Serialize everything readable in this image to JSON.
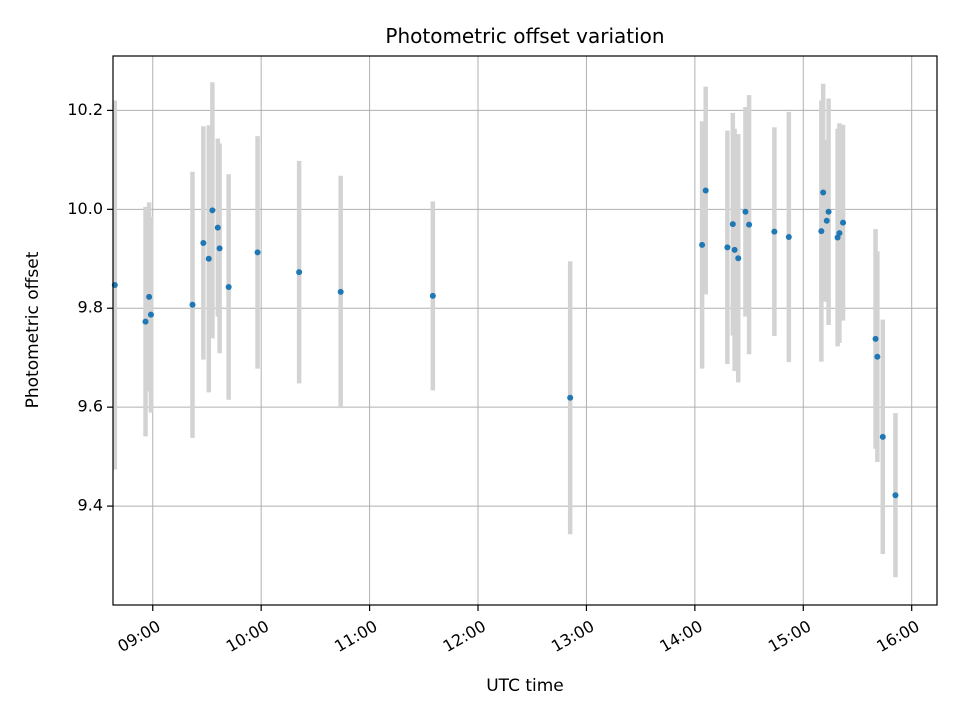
{
  "chart_data": {
    "type": "scatter",
    "title": "Photometric offset variation",
    "xlabel": "UTC time",
    "ylabel": "Photometric offset",
    "xlim": [
      "08:38",
      "16:14"
    ],
    "ylim": [
      9.2,
      10.31
    ],
    "x_ticks": [
      "09:00",
      "10:00",
      "11:00",
      "12:00",
      "13:00",
      "14:00",
      "15:00",
      "16:00"
    ],
    "y_ticks": [
      9.4,
      9.6,
      9.8,
      10.0,
      10.2
    ],
    "grid": true,
    "colors": {
      "marker": "#1f77b4",
      "errorbar": "#d3d3d3",
      "grid": "#b0b0b0"
    },
    "points": [
      {
        "x": "08:39",
        "y": 9.847,
        "yerr": 0.373
      },
      {
        "x": "08:56",
        "y": 9.773,
        "yerr": 0.232
      },
      {
        "x": "08:58",
        "y": 9.823,
        "yerr": 0.191
      },
      {
        "x": "08:59",
        "y": 9.787,
        "yerr": 0.198
      },
      {
        "x": "09:22",
        "y": 9.807,
        "yerr": 0.269
      },
      {
        "x": "09:28",
        "y": 9.932,
        "yerr": 0.236
      },
      {
        "x": "09:31",
        "y": 9.9,
        "yerr": 0.27
      },
      {
        "x": "09:33",
        "y": 9.998,
        "yerr": 0.259
      },
      {
        "x": "09:36",
        "y": 9.963,
        "yerr": 0.18
      },
      {
        "x": "09:37",
        "y": 9.921,
        "yerr": 0.212
      },
      {
        "x": "09:42",
        "y": 9.843,
        "yerr": 0.228
      },
      {
        "x": "09:58",
        "y": 9.913,
        "yerr": 0.235
      },
      {
        "x": "10:21",
        "y": 9.873,
        "yerr": 0.225
      },
      {
        "x": "10:44",
        "y": 9.833,
        "yerr": 0.235
      },
      {
        "x": "11:35",
        "y": 9.825,
        "yerr": 0.191
      },
      {
        "x": "12:51",
        "y": 9.619,
        "yerr": 0.276
      },
      {
        "x": "14:04",
        "y": 9.928,
        "yerr": 0.25
      },
      {
        "x": "14:06",
        "y": 10.038,
        "yerr": 0.21
      },
      {
        "x": "14:18",
        "y": 9.923,
        "yerr": 0.236
      },
      {
        "x": "14:21",
        "y": 9.97,
        "yerr": 0.225
      },
      {
        "x": "14:22",
        "y": 9.918,
        "yerr": 0.245
      },
      {
        "x": "14:24",
        "y": 9.901,
        "yerr": 0.251
      },
      {
        "x": "14:28",
        "y": 9.995,
        "yerr": 0.212
      },
      {
        "x": "14:30",
        "y": 9.969,
        "yerr": 0.262
      },
      {
        "x": "14:44",
        "y": 9.955,
        "yerr": 0.211
      },
      {
        "x": "14:52",
        "y": 9.944,
        "yerr": 0.253
      },
      {
        "x": "15:10",
        "y": 9.956,
        "yerr": 0.264
      },
      {
        "x": "15:11",
        "y": 10.034,
        "yerr": 0.22
      },
      {
        "x": "15:13",
        "y": 9.977,
        "yerr": 0.164
      },
      {
        "x": "15:14",
        "y": 9.995,
        "yerr": 0.229
      },
      {
        "x": "15:19",
        "y": 9.943,
        "yerr": 0.22
      },
      {
        "x": "15:20",
        "y": 9.952,
        "yerr": 0.222
      },
      {
        "x": "15:22",
        "y": 9.973,
        "yerr": 0.198
      },
      {
        "x": "15:40",
        "y": 9.738,
        "yerr": 0.222
      },
      {
        "x": "15:41",
        "y": 9.702,
        "yerr": 0.213
      },
      {
        "x": "15:44",
        "y": 9.54,
        "yerr": 0.237
      },
      {
        "x": "15:51",
        "y": 9.422,
        "yerr": 0.166
      }
    ]
  }
}
